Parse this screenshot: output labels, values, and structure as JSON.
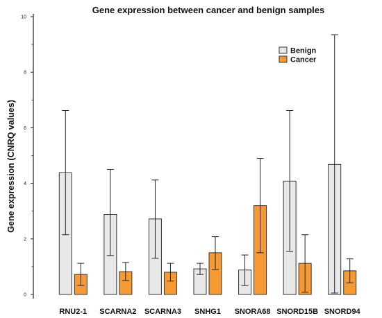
{
  "chart_data": {
    "type": "bar",
    "title": "Gene expression between cancer and benign samples",
    "ylabel": "Gene expression (CNRQ values)",
    "xlabel": "",
    "ylim": [
      0,
      10
    ],
    "yticks": [
      "0",
      "2",
      "4",
      "6",
      "8",
      "10"
    ],
    "grid": false,
    "legend_position": "top-right",
    "categories": [
      "RNU2-1",
      "SCARNA2",
      "SCARNA3",
      "SNHG1",
      "SNORA68",
      "SNORD15B",
      "SNORD94"
    ],
    "series": [
      {
        "name": "Benign",
        "color": "#e8e8e8",
        "values": [
          4.38,
          2.88,
          2.72,
          0.92,
          0.88,
          4.08,
          4.68
        ],
        "error_low": [
          2.15,
          1.4,
          1.3,
          0.72,
          0.32,
          1.55,
          0.05
        ],
        "error_high": [
          6.62,
          4.5,
          4.12,
          1.12,
          1.42,
          6.62,
          9.35
        ]
      },
      {
        "name": "Cancer",
        "color": "#f59a35",
        "values": [
          0.72,
          0.82,
          0.8,
          1.5,
          3.2,
          1.12,
          0.85
        ],
        "error_low": [
          0.32,
          0.5,
          0.48,
          0.9,
          1.5,
          0.08,
          0.42
        ],
        "error_high": [
          1.12,
          1.15,
          1.12,
          2.08,
          4.9,
          2.15,
          1.28
        ]
      }
    ]
  }
}
